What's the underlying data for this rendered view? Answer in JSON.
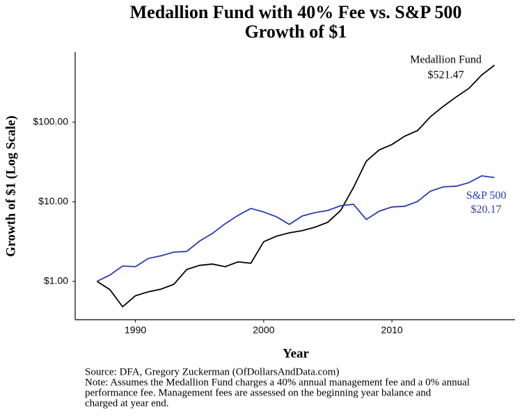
{
  "chart_data": {
    "type": "line",
    "title": "Medallion Fund with 40% Fee vs. S&P 500",
    "subtitle": "Growth of $1",
    "x_label": "Year",
    "y_label": "Growth of $1 (Log Scale)",
    "log_y": true,
    "x": [
      1987,
      1988,
      1989,
      1990,
      1991,
      1992,
      1993,
      1994,
      1995,
      1996,
      1997,
      1998,
      1999,
      2000,
      2001,
      2002,
      2003,
      2004,
      2005,
      2006,
      2007,
      2008,
      2009,
      2010,
      2011,
      2012,
      2013,
      2014,
      2015,
      2016,
      2017,
      2018
    ],
    "series": [
      {
        "name": "Medallion Fund",
        "color": "#000000",
        "end_label": "$521.47",
        "values": [
          1.0,
          0.79,
          0.48,
          0.66,
          0.74,
          0.8,
          0.92,
          1.41,
          1.59,
          1.65,
          1.53,
          1.76,
          1.69,
          3.15,
          3.7,
          4.08,
          4.34,
          4.8,
          5.53,
          7.78,
          15.1,
          32.4,
          44.8,
          52.5,
          66.8,
          78.6,
          117,
          158,
          207,
          266,
          392,
          521.47
        ]
      },
      {
        "name": "S&P 500",
        "color": "#2a3aae",
        "end_label": "$20.17",
        "values": [
          1.0,
          1.2,
          1.56,
          1.53,
          1.94,
          2.1,
          2.33,
          2.38,
          3.21,
          4.0,
          5.31,
          6.75,
          8.25,
          7.45,
          6.48,
          5.2,
          6.62,
          7.32,
          7.78,
          8.93,
          9.3,
          5.99,
          7.62,
          8.61,
          8.78,
          10.1,
          13.6,
          15.4,
          15.7,
          17.4,
          21.2,
          20.17
        ]
      }
    ],
    "xlim": [
      1985.3,
      2019.6
    ],
    "ylim": [
      0.33,
      760
    ],
    "xticks": [
      1990,
      2000,
      2010
    ],
    "yticks": [
      {
        "value": 1,
        "label": "$1.00"
      },
      {
        "value": 10,
        "label": "$10.00"
      },
      {
        "value": 100,
        "label": "$100.00"
      }
    ],
    "grid": false,
    "source": "Source: DFA, Gregory Zuckerman (OfDollarsAndData.com)",
    "note": [
      "Note: Assumes the Medallion Fund charges a 40% annual management fee and a 0% annual",
      "performance fee. Management fees are assessed on the beginning year balance and",
      "charged at year end."
    ]
  }
}
